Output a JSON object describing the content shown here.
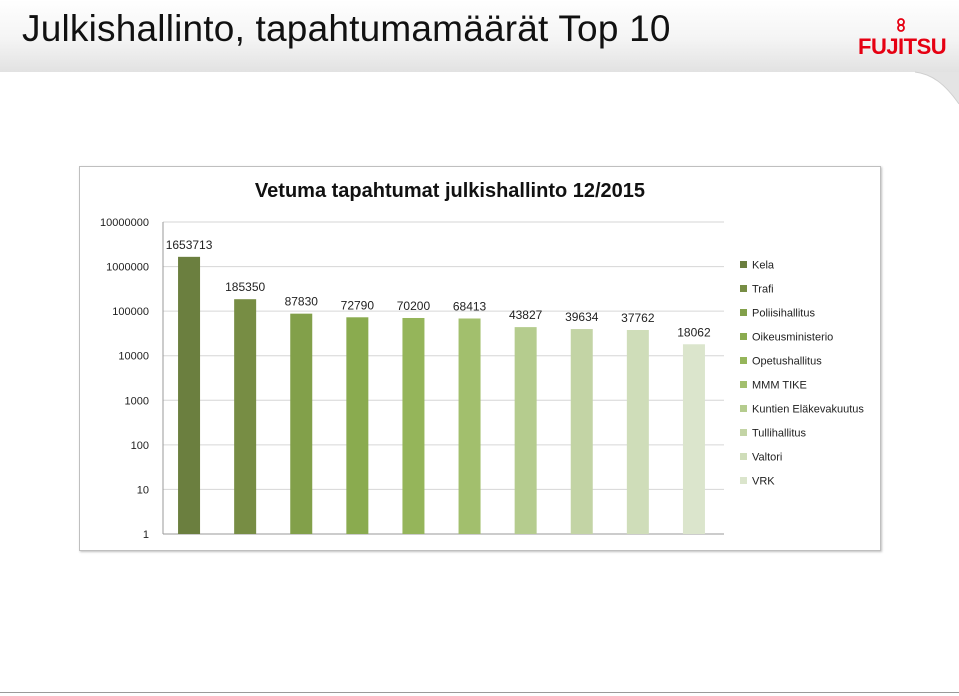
{
  "slide": {
    "title": "Julkishallinto, tapahtumamäärät Top 10",
    "logo_text": "FUJITSU",
    "logo_color": "#e60012"
  },
  "chart_data": {
    "type": "bar",
    "title": "Vetuma tapahtumat julkishallinto 12/2015",
    "y_scale": "log",
    "ylim": [
      1,
      10000000
    ],
    "y_ticks": [
      {
        "value": 1,
        "label": "1"
      },
      {
        "value": 10,
        "label": "10"
      },
      {
        "value": 100,
        "label": "100"
      },
      {
        "value": 1000,
        "label": "1000"
      },
      {
        "value": 10000,
        "label": "10000"
      },
      {
        "value": 100000,
        "label": "100000"
      },
      {
        "value": 1000000,
        "label": "1000000"
      },
      {
        "value": 10000000,
        "label": "10000000"
      }
    ],
    "grid": true,
    "legend_position": "right",
    "series": [
      {
        "name": "Kela",
        "value": 1653713,
        "label": "1653713",
        "color": "#6b7f3f"
      },
      {
        "name": "Trafi",
        "value": 185350,
        "label": "185350",
        "color": "#778d44"
      },
      {
        "name": "Poliisihallitus",
        "value": 87830,
        "label": "87830",
        "color": "#82a04a"
      },
      {
        "name": "Oikeusministerio",
        "value": 72790,
        "label": "72790",
        "color": "#8aab4f"
      },
      {
        "name": "Opetushallitus",
        "value": 70200,
        "label": "70200",
        "color": "#95b55a"
      },
      {
        "name": "MMM TIKE",
        "value": 68413,
        "label": "68413",
        "color": "#a2bf6d"
      },
      {
        "name": "Kuntien Eläkevakuutus",
        "value": 43827,
        "label": "43827",
        "color": "#b5cc8e"
      },
      {
        "name": "Tullihallitus",
        "value": 39634,
        "label": "39634",
        "color": "#c3d4a5"
      },
      {
        "name": "Valtori",
        "value": 37762,
        "label": "37762",
        "color": "#cfddb9"
      },
      {
        "name": "VRK",
        "value": 18062,
        "label": "18062",
        "color": "#dbe5cc"
      }
    ]
  }
}
